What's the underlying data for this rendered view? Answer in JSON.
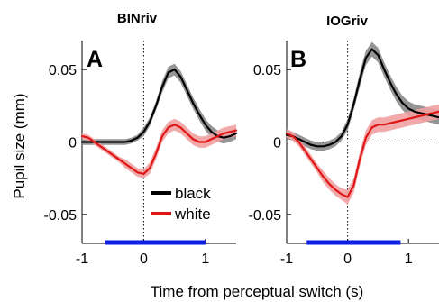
{
  "chart_data": [
    {
      "type": "line",
      "title": "BINriv",
      "panel_label": "A",
      "ylabel": "Pupil size (mm)",
      "xlim": [
        -1,
        1.5
      ],
      "ylim": [
        -0.07,
        0.07
      ],
      "x_ticks": [
        -1,
        0,
        1
      ],
      "y_ticks": [
        -0.05,
        0,
        0.05
      ],
      "x_tick_labels": [
        "-1",
        "0",
        "1"
      ],
      "y_tick_labels": [
        "-0.05",
        "0",
        "0.05"
      ],
      "reference_lines": {
        "x": 0,
        "y": null
      },
      "highlight_bar": {
        "start": -0.62,
        "end": 1.0,
        "color": "#0a1ee6"
      },
      "legend": {
        "entries": [
          "black",
          "white"
        ],
        "placement": "lower-right"
      },
      "colors": {
        "black": "#000000",
        "black_band": "#8a8a8a",
        "white": "#e01616",
        "white_band": "#f0a0a0",
        "bar": "#0a1ee6"
      },
      "series": [
        {
          "name": "black",
          "x": [
            -1.0,
            -0.9,
            -0.8,
            -0.7,
            -0.6,
            -0.5,
            -0.4,
            -0.3,
            -0.2,
            -0.1,
            0.0,
            0.1,
            0.2,
            0.3,
            0.4,
            0.5,
            0.6,
            0.7,
            0.8,
            0.9,
            1.0,
            1.1,
            1.2,
            1.3,
            1.4,
            1.5
          ],
          "values": [
            0.0,
            0.0,
            0.0,
            0.0,
            0.0,
            0.0,
            0.0,
            0.0,
            0.001,
            0.003,
            0.007,
            0.014,
            0.025,
            0.038,
            0.048,
            0.05,
            0.045,
            0.036,
            0.027,
            0.019,
            0.012,
            0.007,
            0.004,
            0.003,
            0.004,
            0.006
          ],
          "error": [
            0.002,
            0.002,
            0.002,
            0.002,
            0.002,
            0.002,
            0.002,
            0.002,
            0.002,
            0.002,
            0.003,
            0.003,
            0.003,
            0.004,
            0.004,
            0.004,
            0.004,
            0.004,
            0.004,
            0.004,
            0.004,
            0.004,
            0.004,
            0.004,
            0.004,
            0.004
          ]
        },
        {
          "name": "white",
          "x": [
            -1.0,
            -0.9,
            -0.8,
            -0.7,
            -0.6,
            -0.5,
            -0.4,
            -0.3,
            -0.2,
            -0.1,
            0.0,
            0.1,
            0.2,
            0.3,
            0.4,
            0.5,
            0.6,
            0.7,
            0.8,
            0.9,
            1.0,
            1.1,
            1.2,
            1.3,
            1.4,
            1.5
          ],
          "values": [
            0.004,
            0.003,
            0.0,
            -0.003,
            -0.006,
            -0.009,
            -0.012,
            -0.015,
            -0.018,
            -0.021,
            -0.022,
            -0.018,
            -0.008,
            0.004,
            0.01,
            0.012,
            0.01,
            0.006,
            0.002,
            0.0,
            0.0,
            0.002,
            0.004,
            0.006,
            0.007,
            0.008
          ],
          "error": [
            0.002,
            0.002,
            0.002,
            0.002,
            0.002,
            0.002,
            0.002,
            0.003,
            0.003,
            0.003,
            0.003,
            0.004,
            0.004,
            0.004,
            0.004,
            0.004,
            0.004,
            0.004,
            0.004,
            0.004,
            0.004,
            0.004,
            0.004,
            0.004,
            0.004,
            0.004
          ]
        }
      ]
    },
    {
      "type": "line",
      "title": "IOGriv",
      "panel_label": "B",
      "ylabel": "",
      "xlim": [
        -1,
        1.5
      ],
      "ylim": [
        -0.07,
        0.07
      ],
      "x_ticks": [
        -1,
        0,
        1
      ],
      "y_ticks": [
        -0.05,
        0,
        0.05
      ],
      "x_tick_labels": [
        "-1",
        "0",
        "1"
      ],
      "y_tick_labels": [
        "-0.05",
        "0",
        "0.05"
      ],
      "reference_lines": {
        "x": 0,
        "y": 0
      },
      "highlight_bar": {
        "start": -0.67,
        "end": 0.87,
        "color": "#0a1ee6"
      },
      "colors": {
        "black": "#000000",
        "black_band": "#8a8a8a",
        "white": "#e01616",
        "white_band": "#f0a0a0",
        "bar": "#0a1ee6"
      },
      "series": [
        {
          "name": "black",
          "x": [
            -1.0,
            -0.9,
            -0.8,
            -0.7,
            -0.6,
            -0.5,
            -0.4,
            -0.3,
            -0.2,
            -0.1,
            0.0,
            0.1,
            0.2,
            0.3,
            0.4,
            0.5,
            0.6,
            0.7,
            0.8,
            0.9,
            1.0,
            1.1,
            1.2,
            1.3,
            1.4,
            1.5
          ],
          "values": [
            0.005,
            0.004,
            0.002,
            0.0,
            -0.002,
            -0.003,
            -0.003,
            -0.002,
            0.0,
            0.004,
            0.012,
            0.026,
            0.043,
            0.058,
            0.064,
            0.06,
            0.05,
            0.041,
            0.033,
            0.027,
            0.023,
            0.021,
            0.02,
            0.019,
            0.018,
            0.017
          ],
          "error": [
            0.003,
            0.003,
            0.003,
            0.003,
            0.003,
            0.003,
            0.003,
            0.003,
            0.003,
            0.003,
            0.004,
            0.004,
            0.005,
            0.005,
            0.005,
            0.005,
            0.005,
            0.005,
            0.005,
            0.005,
            0.005,
            0.005,
            0.005,
            0.005,
            0.005,
            0.005
          ]
        },
        {
          "name": "white",
          "x": [
            -1.0,
            -0.9,
            -0.8,
            -0.7,
            -0.6,
            -0.5,
            -0.4,
            -0.3,
            -0.2,
            -0.1,
            0.0,
            0.1,
            0.2,
            0.3,
            0.4,
            0.5,
            0.6,
            0.7,
            0.8,
            0.9,
            1.0,
            1.1,
            1.2,
            1.3,
            1.4,
            1.5
          ],
          "values": [
            0.006,
            0.004,
            0.0,
            -0.006,
            -0.012,
            -0.018,
            -0.024,
            -0.029,
            -0.033,
            -0.036,
            -0.038,
            -0.03,
            -0.012,
            0.003,
            0.01,
            0.012,
            0.012,
            0.013,
            0.014,
            0.015,
            0.016,
            0.017,
            0.018,
            0.019,
            0.02,
            0.021
          ],
          "error": [
            0.003,
            0.003,
            0.003,
            0.003,
            0.003,
            0.003,
            0.004,
            0.004,
            0.004,
            0.004,
            0.005,
            0.005,
            0.005,
            0.005,
            0.005,
            0.005,
            0.005,
            0.005,
            0.005,
            0.005,
            0.005,
            0.005,
            0.005,
            0.005,
            0.005,
            0.005
          ]
        }
      ]
    }
  ],
  "figure": {
    "xlabel": "Time from perceptual switch (s)"
  }
}
